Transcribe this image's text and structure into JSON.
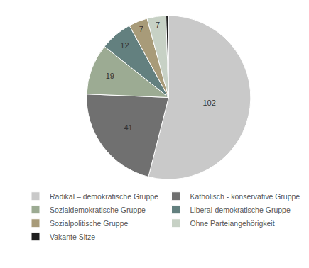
{
  "chart_data": {
    "type": "pie",
    "categories": [
      "Radikal – demokratische Gruppe",
      "Katholisch - konservative Gruppe",
      "Sozialdemokratische Gruppe",
      "Liberal-demokratische Gruppe",
      "Sozialpolitische Gruppe",
      "Ohne Parteiangehörigkeit",
      "Vakante Sitze"
    ],
    "values": [
      102,
      41,
      19,
      12,
      7,
      7,
      1
    ],
    "value_labels": [
      "102",
      "41",
      "19",
      "12",
      "7",
      "7",
      null
    ],
    "colors": [
      "#c9c9c9",
      "#707070",
      "#9cab93",
      "#63807f",
      "#a89b79",
      "#c7d1c5",
      "#1f1f1f"
    ],
    "data_labels": true,
    "legend": "bottom"
  }
}
